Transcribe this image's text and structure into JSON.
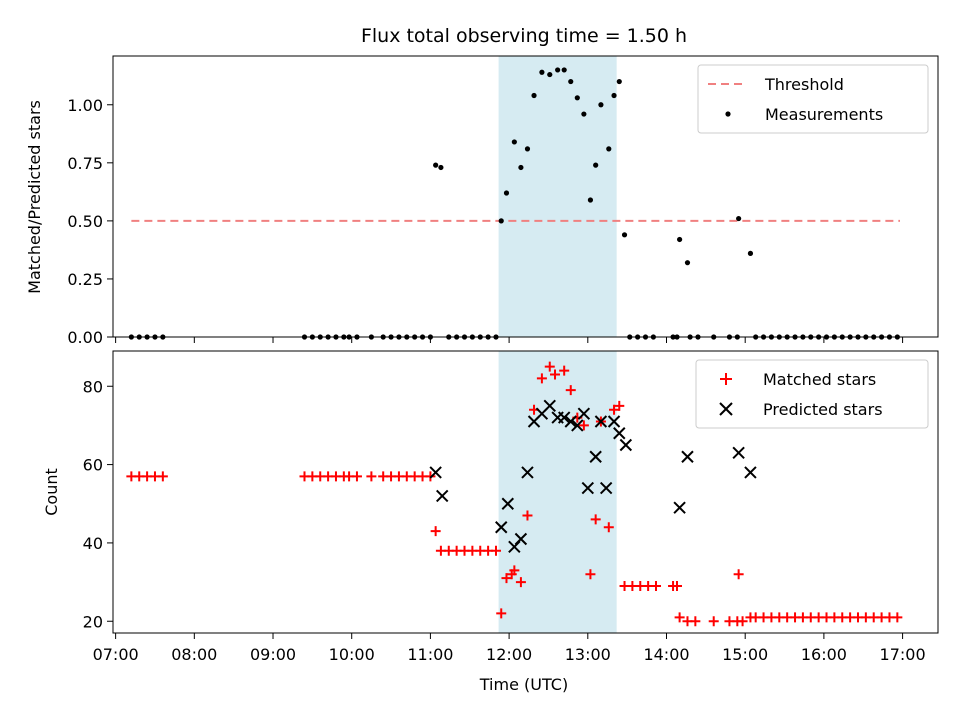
{
  "title": "Flux total observing time = 1.50 h",
  "xlabel": "Time (UTC)",
  "x_ticks": [
    "07:00",
    "08:00",
    "09:00",
    "10:00",
    "11:00",
    "12:00",
    "13:00",
    "14:00",
    "15:00",
    "16:00",
    "17:00"
  ],
  "colors": {
    "threshold": "#f08080",
    "measurement": "#000000",
    "matched": "#ff0000",
    "predicted": "#000000",
    "span": "#add8e6"
  },
  "chart_data": [
    {
      "type": "scatter",
      "title": "Flux total observing time = 1.50 h",
      "ylabel": "Matched/Predicted stars",
      "xlim": [
        "06:58",
        "17:27"
      ],
      "ylim": [
        0,
        1.21
      ],
      "y_ticks": [
        "0.00",
        "0.25",
        "0.50",
        "0.75",
        "1.00"
      ],
      "legend_placement": "top-right",
      "highlight_span": [
        "11:52",
        "13:22"
      ],
      "threshold": {
        "name": "Threshold",
        "x_start": "07:12",
        "x_end": "16:58",
        "y": 0.5
      },
      "series": [
        {
          "name": "Measurements",
          "marker": "dot",
          "points": [
            [
              "07:12",
              0
            ],
            [
              "07:18",
              0
            ],
            [
              "07:24",
              0
            ],
            [
              "07:30",
              0
            ],
            [
              "07:36",
              0
            ],
            [
              "09:24",
              0
            ],
            [
              "09:30",
              0
            ],
            [
              "09:36",
              0
            ],
            [
              "09:42",
              0
            ],
            [
              "09:48",
              0
            ],
            [
              "09:54",
              0
            ],
            [
              "09:58",
              0
            ],
            [
              "10:04",
              0
            ],
            [
              "10:15",
              0
            ],
            [
              "10:24",
              0
            ],
            [
              "10:30",
              0
            ],
            [
              "10:36",
              0
            ],
            [
              "10:42",
              0
            ],
            [
              "10:48",
              0
            ],
            [
              "10:54",
              0
            ],
            [
              "11:00",
              0
            ],
            [
              "11:04",
              0.74
            ],
            [
              "11:08",
              0.73
            ],
            [
              "11:14",
              0
            ],
            [
              "11:20",
              0
            ],
            [
              "11:26",
              0
            ],
            [
              "11:32",
              0
            ],
            [
              "11:38",
              0
            ],
            [
              "11:44",
              0
            ],
            [
              "11:50",
              0
            ],
            [
              "11:54",
              0.5
            ],
            [
              "11:58",
              0.62
            ],
            [
              "12:04",
              0.84
            ],
            [
              "12:09",
              0.73
            ],
            [
              "12:14",
              0.81
            ],
            [
              "12:19",
              1.04
            ],
            [
              "12:25",
              1.14
            ],
            [
              "12:31",
              1.13
            ],
            [
              "12:37",
              1.15
            ],
            [
              "12:42",
              1.15
            ],
            [
              "12:47",
              1.1
            ],
            [
              "12:52",
              1.03
            ],
            [
              "12:57",
              0.96
            ],
            [
              "13:02",
              0.59
            ],
            [
              "13:06",
              0.74
            ],
            [
              "13:10",
              1.0
            ],
            [
              "13:16",
              0.81
            ],
            [
              "13:20",
              1.04
            ],
            [
              "13:24",
              1.1
            ],
            [
              "13:28",
              0.44
            ],
            [
              "13:32",
              0
            ],
            [
              "13:38",
              0
            ],
            [
              "13:44",
              0
            ],
            [
              "13:50",
              0
            ],
            [
              "14:05",
              0
            ],
            [
              "14:08",
              0
            ],
            [
              "14:10",
              0.42
            ],
            [
              "14:16",
              0.32
            ],
            [
              "14:18",
              0
            ],
            [
              "14:24",
              0
            ],
            [
              "14:36",
              0
            ],
            [
              "14:48",
              0
            ],
            [
              "14:54",
              0
            ],
            [
              "14:55",
              0.51
            ],
            [
              "15:04",
              0.36
            ],
            [
              "15:08",
              0
            ],
            [
              "15:14",
              0
            ],
            [
              "15:20",
              0
            ],
            [
              "15:26",
              0
            ],
            [
              "15:32",
              0
            ],
            [
              "15:38",
              0
            ],
            [
              "15:44",
              0
            ],
            [
              "15:50",
              0
            ],
            [
              "15:56",
              0
            ],
            [
              "16:02",
              0
            ],
            [
              "16:08",
              0
            ],
            [
              "16:14",
              0
            ],
            [
              "16:20",
              0
            ],
            [
              "16:26",
              0
            ],
            [
              "16:32",
              0
            ],
            [
              "16:38",
              0
            ],
            [
              "16:44",
              0
            ],
            [
              "16:50",
              0
            ],
            [
              "16:56",
              0
            ]
          ]
        }
      ]
    },
    {
      "type": "scatter",
      "ylabel": "Count",
      "xlabel": "Time (UTC)",
      "xlim": [
        "06:58",
        "17:27"
      ],
      "ylim": [
        17,
        89
      ],
      "y_ticks": [
        "20",
        "40",
        "60",
        "80"
      ],
      "legend_placement": "top-right",
      "highlight_span": [
        "11:52",
        "13:22"
      ],
      "series": [
        {
          "name": "Matched stars",
          "marker": "plus",
          "points": [
            [
              "07:12",
              57
            ],
            [
              "07:18",
              57
            ],
            [
              "07:24",
              57
            ],
            [
              "07:30",
              57
            ],
            [
              "07:36",
              57
            ],
            [
              "09:24",
              57
            ],
            [
              "09:30",
              57
            ],
            [
              "09:36",
              57
            ],
            [
              "09:42",
              57
            ],
            [
              "09:48",
              57
            ],
            [
              "09:54",
              57
            ],
            [
              "09:58",
              57
            ],
            [
              "10:04",
              57
            ],
            [
              "10:15",
              57
            ],
            [
              "10:24",
              57
            ],
            [
              "10:30",
              57
            ],
            [
              "10:36",
              57
            ],
            [
              "10:42",
              57
            ],
            [
              "10:48",
              57
            ],
            [
              "10:54",
              57
            ],
            [
              "11:00",
              57
            ],
            [
              "11:04",
              43
            ],
            [
              "11:08",
              38
            ],
            [
              "11:14",
              38
            ],
            [
              "11:20",
              38
            ],
            [
              "11:26",
              38
            ],
            [
              "11:32",
              38
            ],
            [
              "11:38",
              38
            ],
            [
              "11:44",
              38
            ],
            [
              "11:50",
              38
            ],
            [
              "11:54",
              22
            ],
            [
              "11:58",
              31
            ],
            [
              "12:02",
              32
            ],
            [
              "12:04",
              33
            ],
            [
              "12:09",
              30
            ],
            [
              "12:14",
              47
            ],
            [
              "12:19",
              74
            ],
            [
              "12:25",
              82
            ],
            [
              "12:31",
              85
            ],
            [
              "12:35",
              83
            ],
            [
              "12:42",
              84
            ],
            [
              "12:47",
              79
            ],
            [
              "12:52",
              72
            ],
            [
              "12:57",
              70
            ],
            [
              "13:02",
              32
            ],
            [
              "13:06",
              46
            ],
            [
              "13:10",
              71
            ],
            [
              "13:16",
              44
            ],
            [
              "13:20",
              74
            ],
            [
              "13:24",
              75
            ],
            [
              "13:28",
              29
            ],
            [
              "13:34",
              29
            ],
            [
              "13:40",
              29
            ],
            [
              "13:46",
              29
            ],
            [
              "13:52",
              29
            ],
            [
              "14:05",
              29
            ],
            [
              "14:08",
              29
            ],
            [
              "14:10",
              21
            ],
            [
              "14:16",
              20
            ],
            [
              "14:22",
              20
            ],
            [
              "14:36",
              20
            ],
            [
              "14:48",
              20
            ],
            [
              "14:54",
              20
            ],
            [
              "14:58",
              20
            ],
            [
              "14:55",
              32
            ],
            [
              "15:04",
              21
            ],
            [
              "15:08",
              21
            ],
            [
              "15:14",
              21
            ],
            [
              "15:20",
              21
            ],
            [
              "15:26",
              21
            ],
            [
              "15:32",
              21
            ],
            [
              "15:38",
              21
            ],
            [
              "15:44",
              21
            ],
            [
              "15:50",
              21
            ],
            [
              "15:56",
              21
            ],
            [
              "16:02",
              21
            ],
            [
              "16:08",
              21
            ],
            [
              "16:14",
              21
            ],
            [
              "16:20",
              21
            ],
            [
              "16:26",
              21
            ],
            [
              "16:32",
              21
            ],
            [
              "16:38",
              21
            ],
            [
              "16:44",
              21
            ],
            [
              "16:50",
              21
            ],
            [
              "16:56",
              21
            ]
          ]
        },
        {
          "name": "Predicted stars",
          "marker": "x",
          "points": [
            [
              "11:04",
              58
            ],
            [
              "11:09",
              52
            ],
            [
              "11:54",
              44
            ],
            [
              "11:59",
              50
            ],
            [
              "12:04",
              39
            ],
            [
              "12:09",
              41
            ],
            [
              "12:14",
              58
            ],
            [
              "12:19",
              71
            ],
            [
              "12:25",
              73
            ],
            [
              "12:31",
              75
            ],
            [
              "12:37",
              72
            ],
            [
              "12:42",
              72
            ],
            [
              "12:47",
              71
            ],
            [
              "12:52",
              70
            ],
            [
              "12:57",
              73
            ],
            [
              "13:00",
              54
            ],
            [
              "13:06",
              62
            ],
            [
              "13:10",
              71
            ],
            [
              "13:14",
              54
            ],
            [
              "13:20",
              71
            ],
            [
              "13:24",
              68
            ],
            [
              "13:29",
              65
            ],
            [
              "14:10",
              49
            ],
            [
              "14:16",
              62
            ],
            [
              "14:55",
              63
            ],
            [
              "15:04",
              58
            ]
          ]
        }
      ]
    }
  ]
}
